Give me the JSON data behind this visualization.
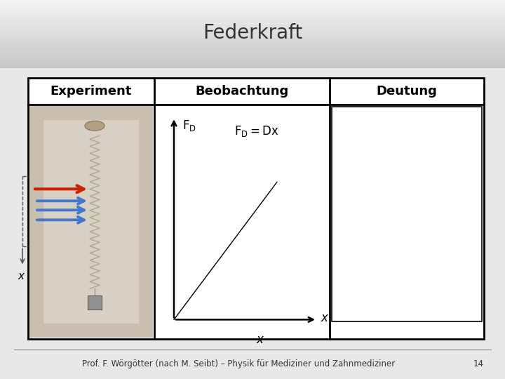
{
  "title": "Federkraft",
  "title_fontsize": 20,
  "title_color": "#333333",
  "header_experiment": "Experiment",
  "header_beobachtung": "Beobachtung",
  "header_deutung": "Deutung",
  "header_fontsize": 13,
  "x_label": "x",
  "footer_text": "Prof. F. Wörgötter (nach M. Seibt) – Physik für Mediziner und Zahnmediziner",
  "footer_number": "14",
  "footer_fontsize": 8.5,
  "arrow_red_color": "#cc2200",
  "arrow_blue_color": "#4477cc",
  "dashed_line_color": "#555555",
  "box_color": "#000000",
  "bg_slide": "#e8e8e8",
  "bg_title_light": "#f0f0f0",
  "bg_title_dark": "#cccccc",
  "bg_content": "#f5f5f5"
}
